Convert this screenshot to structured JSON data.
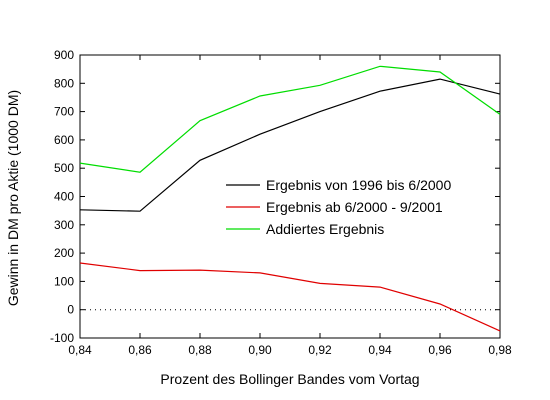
{
  "chart_data": {
    "type": "line",
    "xlabel": "Prozent des Bollinger Bandes vom Vortag",
    "ylabel": "Gewinn in DM pro Aktie (1000 DM)",
    "xlim": [
      0.84,
      0.98
    ],
    "ylim": [
      -100,
      900
    ],
    "x_ticks": [
      "0,84",
      "0,86",
      "0,88",
      "0,90",
      "0,92",
      "0,94",
      "0,96",
      "0,98"
    ],
    "y_ticks": [
      "900",
      "800",
      "700",
      "600",
      "500",
      "400",
      "300",
      "200",
      "100",
      "0",
      "-100"
    ],
    "x": [
      0.84,
      0.86,
      0.88,
      0.9,
      0.92,
      0.94,
      0.96,
      0.98
    ],
    "zero_line": "dotted",
    "legend_position": "center-right",
    "series": [
      {
        "name": "Ergebnis von 1996 bis 6/2000",
        "color": "#000000",
        "values": [
          353,
          348,
          528,
          620,
          700,
          772,
          815,
          762
        ]
      },
      {
        "name": "Ergebnis ab 6/2000 - 9/2001",
        "color": "#e00000",
        "values": [
          165,
          138,
          140,
          130,
          93,
          80,
          20,
          -75
        ]
      },
      {
        "name": "Addiertes Ergebnis",
        "color": "#00dd00",
        "values": [
          518,
          486,
          668,
          755,
          793,
          860,
          840,
          690
        ]
      }
    ]
  }
}
